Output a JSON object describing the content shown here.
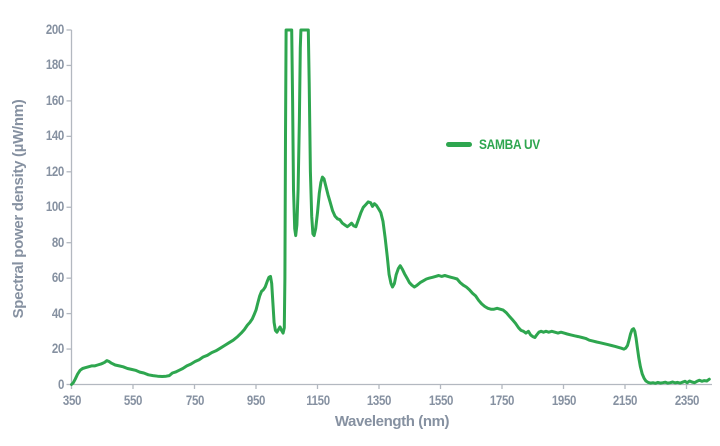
{
  "colors": {
    "series_green": "#2EA64F",
    "axis_text_gray": "#8691A1",
    "axis_line_gray": "#B3B8C0",
    "background": "#FFFFFF"
  },
  "chart_data": {
    "type": "line",
    "title": "",
    "xlabel": "Wavelength (nm)",
    "ylabel": "Spectral power density (µW/nm)",
    "xlim": [
      350,
      2433
    ],
    "ylim": [
      0,
      200
    ],
    "x_ticks": [
      350,
      550,
      750,
      950,
      1150,
      1350,
      1550,
      1750,
      1950,
      2150,
      2350
    ],
    "y_ticks": [
      0,
      20,
      40,
      60,
      80,
      100,
      120,
      140,
      160,
      180,
      200
    ],
    "grid": false,
    "legend_position": "center-right",
    "series": [
      {
        "name": "SAMBA UV",
        "color": "#2EA64F",
        "clipped_at_ymax": true,
        "points": [
          [
            350,
            0
          ],
          [
            356,
            1
          ],
          [
            362,
            3
          ],
          [
            370,
            6
          ],
          [
            378,
            8
          ],
          [
            386,
            9
          ],
          [
            395,
            9.5
          ],
          [
            405,
            10
          ],
          [
            415,
            10.5
          ],
          [
            425,
            10.5
          ],
          [
            435,
            11
          ],
          [
            445,
            11.5
          ],
          [
            452,
            12
          ],
          [
            458,
            12.5
          ],
          [
            465,
            13.5
          ],
          [
            472,
            13
          ],
          [
            480,
            12
          ],
          [
            492,
            11
          ],
          [
            505,
            10.5
          ],
          [
            518,
            10
          ],
          [
            532,
            9
          ],
          [
            545,
            8.5
          ],
          [
            558,
            8
          ],
          [
            572,
            7
          ],
          [
            585,
            6.5
          ],
          [
            600,
            5.5
          ],
          [
            615,
            5
          ],
          [
            630,
            4.7
          ],
          [
            645,
            4.5
          ],
          [
            658,
            4.7
          ],
          [
            668,
            5
          ],
          [
            678,
            6.5
          ],
          [
            688,
            7
          ],
          [
            700,
            8
          ],
          [
            712,
            9
          ],
          [
            725,
            10.5
          ],
          [
            738,
            11.5
          ],
          [
            752,
            13
          ],
          [
            765,
            14
          ],
          [
            778,
            15.5
          ],
          [
            792,
            16.5
          ],
          [
            806,
            18
          ],
          [
            820,
            19
          ],
          [
            834,
            20.5
          ],
          [
            848,
            22
          ],
          [
            862,
            23.5
          ],
          [
            876,
            25
          ],
          [
            890,
            27
          ],
          [
            902,
            29
          ],
          [
            912,
            31
          ],
          [
            922,
            33.5
          ],
          [
            930,
            35
          ],
          [
            938,
            37
          ],
          [
            944,
            39.5
          ],
          [
            950,
            42
          ],
          [
            956,
            46
          ],
          [
            962,
            50
          ],
          [
            968,
            52.5
          ],
          [
            974,
            53.5
          ],
          [
            980,
            55
          ],
          [
            986,
            58
          ],
          [
            992,
            60.5
          ],
          [
            997,
            61
          ],
          [
            1001,
            57
          ],
          [
            1005,
            46
          ],
          [
            1009,
            35
          ],
          [
            1013,
            30.5
          ],
          [
            1018,
            29.5
          ],
          [
            1023,
            31
          ],
          [
            1028,
            32.5
          ],
          [
            1033,
            30.5
          ],
          [
            1038,
            29
          ],
          [
            1042,
            32
          ],
          [
            1044,
            60
          ],
          [
            1046,
            140
          ],
          [
            1048,
            200
          ],
          [
            1066,
            200
          ],
          [
            1069,
            160
          ],
          [
            1072,
            110
          ],
          [
            1076,
            88
          ],
          [
            1079,
            84
          ],
          [
            1083,
            90
          ],
          [
            1087,
            110
          ],
          [
            1091,
            150
          ],
          [
            1094,
            190
          ],
          [
            1096,
            200
          ],
          [
            1120,
            200
          ],
          [
            1123,
            170
          ],
          [
            1127,
            120
          ],
          [
            1131,
            95
          ],
          [
            1135,
            85
          ],
          [
            1139,
            84
          ],
          [
            1144,
            88
          ],
          [
            1150,
            97
          ],
          [
            1156,
            108
          ],
          [
            1161,
            114
          ],
          [
            1166,
            117
          ],
          [
            1171,
            116
          ],
          [
            1177,
            112
          ],
          [
            1184,
            107
          ],
          [
            1191,
            103
          ],
          [
            1199,
            98
          ],
          [
            1207,
            95
          ],
          [
            1215,
            93.5
          ],
          [
            1223,
            93
          ],
          [
            1231,
            91
          ],
          [
            1239,
            90
          ],
          [
            1247,
            89
          ],
          [
            1254,
            90
          ],
          [
            1261,
            91
          ],
          [
            1268,
            89.5
          ],
          [
            1275,
            89
          ],
          [
            1283,
            93
          ],
          [
            1291,
            97
          ],
          [
            1299,
            100
          ],
          [
            1307,
            101.5
          ],
          [
            1315,
            103
          ],
          [
            1323,
            102.5
          ],
          [
            1329,
            100.5
          ],
          [
            1335,
            102
          ],
          [
            1342,
            101
          ],
          [
            1349,
            99
          ],
          [
            1356,
            97
          ],
          [
            1363,
            92
          ],
          [
            1370,
            83
          ],
          [
            1377,
            72
          ],
          [
            1383,
            62
          ],
          [
            1389,
            57
          ],
          [
            1394,
            55
          ],
          [
            1400,
            57
          ],
          [
            1406,
            62
          ],
          [
            1413,
            65.5
          ],
          [
            1419,
            67
          ],
          [
            1426,
            65
          ],
          [
            1433,
            62.5
          ],
          [
            1441,
            60
          ],
          [
            1449,
            57.5
          ],
          [
            1457,
            56
          ],
          [
            1465,
            55
          ],
          [
            1474,
            56
          ],
          [
            1484,
            57.5
          ],
          [
            1494,
            58.5
          ],
          [
            1504,
            59.5
          ],
          [
            1514,
            60
          ],
          [
            1524,
            60.5
          ],
          [
            1534,
            61
          ],
          [
            1544,
            61.5
          ],
          [
            1554,
            61
          ],
          [
            1564,
            61.5
          ],
          [
            1574,
            61
          ],
          [
            1584,
            60.5
          ],
          [
            1594,
            60
          ],
          [
            1604,
            59.5
          ],
          [
            1614,
            57.5
          ],
          [
            1624,
            56
          ],
          [
            1634,
            55
          ],
          [
            1644,
            53.5
          ],
          [
            1654,
            51.5
          ],
          [
            1664,
            50
          ],
          [
            1674,
            47.5
          ],
          [
            1684,
            45.5
          ],
          [
            1694,
            44
          ],
          [
            1704,
            43
          ],
          [
            1714,
            42.5
          ],
          [
            1724,
            42.5
          ],
          [
            1734,
            43
          ],
          [
            1744,
            42.5
          ],
          [
            1754,
            42
          ],
          [
            1764,
            40.5
          ],
          [
            1774,
            38.5
          ],
          [
            1784,
            36.5
          ],
          [
            1794,
            34.5
          ],
          [
            1804,
            32
          ],
          [
            1812,
            30.5
          ],
          [
            1820,
            30
          ],
          [
            1828,
            29
          ],
          [
            1836,
            30
          ],
          [
            1843,
            28
          ],
          [
            1850,
            27
          ],
          [
            1857,
            26.5
          ],
          [
            1863,
            28
          ],
          [
            1870,
            29.5
          ],
          [
            1877,
            30
          ],
          [
            1885,
            29.5
          ],
          [
            1893,
            30
          ],
          [
            1902,
            29.5
          ],
          [
            1912,
            30
          ],
          [
            1922,
            29.5
          ],
          [
            1932,
            29
          ],
          [
            1942,
            29.5
          ],
          [
            1952,
            29
          ],
          [
            1962,
            28.5
          ],
          [
            1974,
            28
          ],
          [
            1986,
            27.5
          ],
          [
            1998,
            27
          ],
          [
            2010,
            26.5
          ],
          [
            2022,
            26
          ],
          [
            2034,
            25
          ],
          [
            2046,
            24.5
          ],
          [
            2058,
            24
          ],
          [
            2070,
            23.5
          ],
          [
            2082,
            23
          ],
          [
            2094,
            22.5
          ],
          [
            2106,
            22
          ],
          [
            2118,
            21.5
          ],
          [
            2128,
            21
          ],
          [
            2138,
            20.5
          ],
          [
            2146,
            20
          ],
          [
            2152,
            20.5
          ],
          [
            2158,
            22
          ],
          [
            2163,
            25
          ],
          [
            2168,
            28.5
          ],
          [
            2173,
            31
          ],
          [
            2178,
            31.5
          ],
          [
            2182,
            30
          ],
          [
            2186,
            26
          ],
          [
            2190,
            21
          ],
          [
            2195,
            15
          ],
          [
            2200,
            10
          ],
          [
            2206,
            6
          ],
          [
            2212,
            3.5
          ],
          [
            2218,
            2
          ],
          [
            2225,
            1.2
          ],
          [
            2233,
            0.8
          ],
          [
            2241,
            1
          ],
          [
            2249,
            0.7
          ],
          [
            2257,
            1.2
          ],
          [
            2265,
            0.8
          ],
          [
            2273,
            1
          ],
          [
            2281,
            1.3
          ],
          [
            2289,
            0.8
          ],
          [
            2297,
            1
          ],
          [
            2305,
            1.4
          ],
          [
            2313,
            0.9
          ],
          [
            2321,
            1.2
          ],
          [
            2329,
            0.8
          ],
          [
            2337,
            1.3
          ],
          [
            2345,
            1.8
          ],
          [
            2352,
            1
          ],
          [
            2360,
            2
          ],
          [
            2368,
            1.4
          ],
          [
            2376,
            1
          ],
          [
            2384,
            1.8
          ],
          [
            2392,
            2.4
          ],
          [
            2400,
            1.8
          ],
          [
            2408,
            2.2
          ],
          [
            2416,
            2
          ],
          [
            2424,
            3
          ]
        ]
      }
    ]
  }
}
